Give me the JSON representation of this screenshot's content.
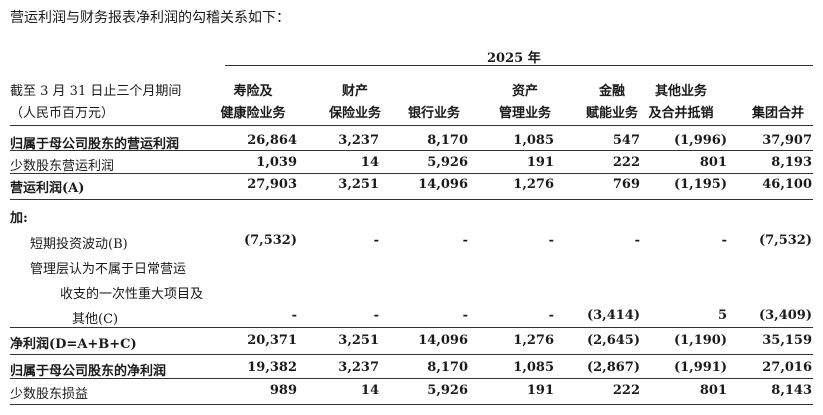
{
  "intro": "营运利润与财务报表净利润的勾稽关系如下：",
  "year": "2025 年",
  "stub": [
    "截至 3 月 31 日止三个月期间",
    "（人民币百万元）"
  ],
  "columns": [
    [
      "寿险及",
      "健康险业务"
    ],
    [
      "财产",
      "保险业务"
    ],
    [
      "",
      "银行业务"
    ],
    [
      "资产",
      "管理业务"
    ],
    [
      "金融",
      "赋能业务"
    ],
    [
      "其他业务",
      "及合并抵销"
    ],
    [
      "",
      "集团合并"
    ]
  ],
  "rows": [
    {
      "label": [
        "归属于母公司股东的营运利润"
      ],
      "bold": true,
      "values": [
        "26,864",
        "3,237",
        "8,170",
        "1,085",
        "547",
        "(1,996)",
        "37,907"
      ]
    },
    {
      "label": [
        "少数股东营运利润"
      ],
      "bold": false,
      "values": [
        "1,039",
        "14",
        "5,926",
        "191",
        "222",
        "801",
        "8,193"
      ]
    },
    {
      "label": [
        "营运利润(A)"
      ],
      "bold": true,
      "values": [
        "27,903",
        "3,251",
        "14,096",
        "1,276",
        "769",
        "(1,195)",
        "46,100"
      ]
    },
    {
      "label": [
        "加:"
      ],
      "bold": true,
      "values": []
    },
    {
      "label": [
        "短期投资波动(B)"
      ],
      "bold": false,
      "values": [
        "(7,532)",
        "-",
        "-",
        "-",
        "-",
        "-",
        "(7,532)"
      ]
    },
    {
      "label": [
        "管理层认为不属于日常营运",
        "收支的一次性重大项目及",
        "其他(C)"
      ],
      "bold": false,
      "values": [
        "-",
        "-",
        "-",
        "-",
        "(3,414)",
        "5",
        "(3,409)"
      ]
    },
    {
      "label": [
        "净利润(D=A+B+C)"
      ],
      "bold": true,
      "values": [
        "20,371",
        "3,251",
        "14,096",
        "1,276",
        "(2,645)",
        "(1,190)",
        "35,159"
      ]
    },
    {
      "label": [
        "归属于母公司股东的净利润"
      ],
      "bold": true,
      "values": [
        "19,382",
        "3,237",
        "8,170",
        "1,085",
        "(2,867)",
        "(1,991)",
        "27,016"
      ]
    },
    {
      "label": [
        "少数股东损益"
      ],
      "bold": false,
      "values": [
        "989",
        "14",
        "5,926",
        "191",
        "222",
        "801",
        "8,143"
      ]
    }
  ]
}
